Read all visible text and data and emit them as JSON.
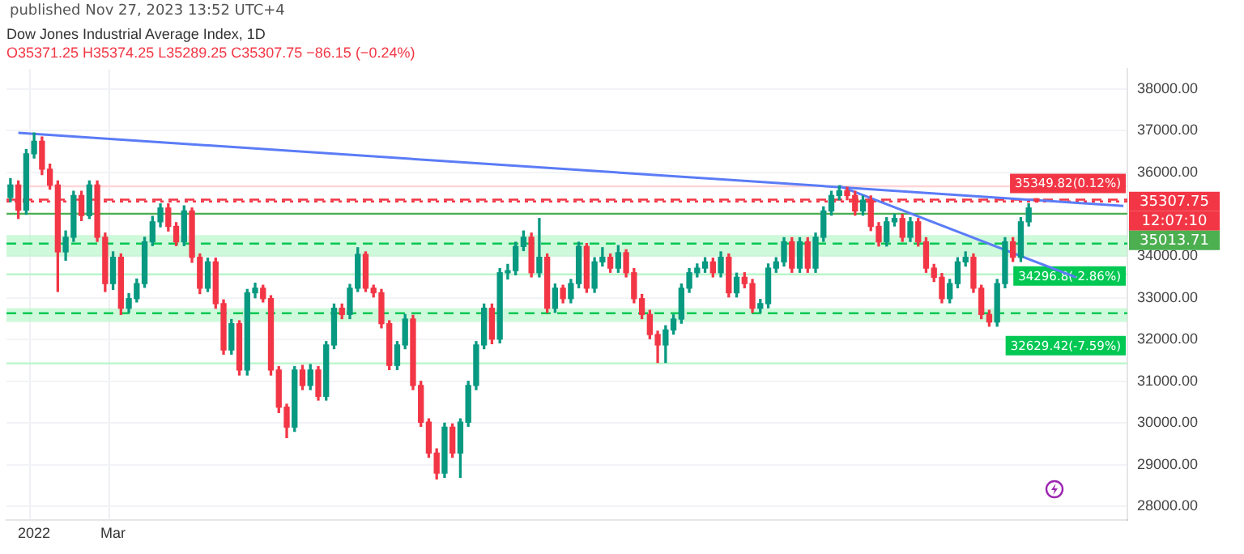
{
  "chart_data": {
    "type": "candlestick",
    "title": "Dow Jones Industrial Average Index, 1D",
    "subtitle": "O35371.25 H35374.25 L35289.25 C35307.75 −86.15 (−0.24%)",
    "categories": [
      null,
      null,
      null,
      "2022",
      null,
      null,
      null,
      null,
      null,
      null,
      null,
      null,
      null,
      "Mar",
      null,
      null,
      null,
      null,
      null,
      null,
      null,
      null,
      null,
      null,
      null,
      null,
      null,
      null,
      null,
      null,
      null,
      null,
      null,
      null,
      null,
      null,
      null,
      null,
      null,
      null,
      null,
      null,
      null,
      null,
      null,
      null,
      null,
      null,
      null,
      null,
      null,
      null,
      null,
      null,
      null,
      null,
      null,
      null,
      null,
      null,
      null,
      null,
      null,
      null,
      null,
      null,
      null,
      null,
      null,
      null,
      null,
      null,
      null,
      null,
      null,
      null,
      null,
      null,
      null,
      null,
      null,
      null,
      null,
      null,
      null,
      null,
      null,
      null,
      null,
      null,
      null,
      null,
      null,
      null,
      null,
      null,
      null,
      null,
      null,
      null,
      null,
      null,
      null,
      null,
      null,
      null,
      null,
      null,
      null,
      null,
      null,
      null,
      null,
      null,
      null,
      null,
      null,
      null,
      null,
      null,
      null,
      null,
      null,
      null,
      null,
      null,
      null,
      null,
      null,
      null,
      null,
      null,
      null,
      null,
      null,
      null,
      null,
      null,
      null,
      null,
      null,
      null
    ],
    "series": [
      {
        "ohlc": [
          [
            35400,
            35850,
            35300,
            35700
          ],
          [
            35700,
            35800,
            34900,
            35100
          ],
          [
            35100,
            36550,
            35000,
            36450
          ],
          [
            36450,
            36950,
            36350,
            36750
          ],
          [
            36750,
            36850,
            35950,
            36080
          ],
          [
            36080,
            36200,
            35600,
            35700
          ],
          [
            35700,
            35800,
            33150,
            34100
          ],
          [
            34100,
            34600,
            33900,
            34450
          ],
          [
            34450,
            35550,
            34350,
            35450
          ],
          [
            35450,
            35550,
            34850,
            34970
          ],
          [
            34970,
            35800,
            34900,
            35700
          ],
          [
            35700,
            35800,
            34350,
            34450
          ],
          [
            34450,
            34550,
            33150,
            33340
          ],
          [
            33340,
            34100,
            33200,
            33970
          ],
          [
            33970,
            34050,
            32600,
            32750
          ],
          [
            32750,
            33100,
            32650,
            32980
          ],
          [
            32980,
            33450,
            32900,
            33340
          ],
          [
            33340,
            34450,
            33250,
            34340
          ],
          [
            34340,
            34950,
            34250,
            34820
          ],
          [
            34820,
            35250,
            34700,
            35150
          ],
          [
            35150,
            35250,
            34600,
            34710
          ],
          [
            34710,
            34800,
            34250,
            34340
          ],
          [
            34340,
            35200,
            34250,
            35080
          ],
          [
            35080,
            35150,
            33850,
            33970
          ],
          [
            33970,
            34050,
            33100,
            33230
          ],
          [
            33230,
            33950,
            33150,
            33860
          ],
          [
            33860,
            33950,
            32750,
            32860
          ],
          [
            32860,
            32950,
            31650,
            31750
          ],
          [
            31750,
            32480,
            31650,
            32380
          ],
          [
            32380,
            32450,
            31150,
            31270
          ],
          [
            31270,
            33200,
            31150,
            33120
          ],
          [
            33120,
            33350,
            33000,
            33230
          ],
          [
            33230,
            33300,
            32900,
            32980
          ],
          [
            32980,
            33050,
            31150,
            31270
          ],
          [
            31270,
            31350,
            30250,
            30380
          ],
          [
            30380,
            30450,
            29650,
            29900
          ],
          [
            29900,
            31350,
            29800,
            31270
          ],
          [
            31270,
            31380,
            30800,
            30900
          ],
          [
            30900,
            31400,
            30800,
            31270
          ],
          [
            31270,
            31350,
            30550,
            30640
          ],
          [
            30640,
            31950,
            30550,
            31870
          ],
          [
            31870,
            32850,
            31780,
            32750
          ],
          [
            32750,
            32850,
            32500,
            32600
          ],
          [
            32600,
            33320,
            32500,
            33230
          ],
          [
            33230,
            34200,
            33150,
            34040
          ],
          [
            34040,
            34100,
            33150,
            33230
          ],
          [
            33230,
            33300,
            33020,
            33120
          ],
          [
            33120,
            33200,
            32280,
            32380
          ],
          [
            32380,
            32450,
            31280,
            31380
          ],
          [
            31380,
            31950,
            31280,
            31870
          ],
          [
            31870,
            32600,
            31780,
            32490
          ],
          [
            32490,
            32580,
            30800,
            30900
          ],
          [
            30900,
            31000,
            29920,
            30020
          ],
          [
            30020,
            30100,
            29180,
            29280
          ],
          [
            29280,
            29380,
            28660,
            28800
          ],
          [
            28800,
            30000,
            28700,
            29900
          ],
          [
            29900,
            29980,
            29180,
            29280
          ],
          [
            29280,
            30100,
            28700,
            30020
          ],
          [
            30020,
            31000,
            29920,
            30900
          ],
          [
            30900,
            31950,
            30800,
            31870
          ],
          [
            31870,
            32850,
            31780,
            32750
          ],
          [
            32750,
            32850,
            31900,
            32010
          ],
          [
            32010,
            33700,
            31920,
            33600
          ],
          [
            33600,
            33800,
            33450,
            33650
          ],
          [
            33650,
            34330,
            33550,
            34230
          ],
          [
            34230,
            34600,
            34130,
            34450
          ],
          [
            34450,
            34550,
            33500,
            33600
          ],
          [
            33600,
            34900,
            33500,
            33970
          ],
          [
            33970,
            34050,
            32650,
            32750
          ],
          [
            32750,
            33330,
            32650,
            33230
          ],
          [
            33230,
            33300,
            32880,
            32980
          ],
          [
            32980,
            33440,
            32880,
            33340
          ],
          [
            33340,
            34330,
            33240,
            34230
          ],
          [
            34230,
            34300,
            33130,
            33230
          ],
          [
            33230,
            33960,
            33130,
            33860
          ],
          [
            33860,
            34200,
            33760,
            33970
          ],
          [
            33970,
            34050,
            33610,
            33710
          ],
          [
            33710,
            34250,
            33610,
            34080
          ],
          [
            34080,
            34150,
            33500,
            33600
          ],
          [
            33600,
            33700,
            32880,
            32980
          ],
          [
            32980,
            33080,
            32500,
            32600
          ],
          [
            32600,
            32700,
            32020,
            32120
          ],
          [
            32120,
            32200,
            31450,
            31870
          ],
          [
            31870,
            32330,
            31450,
            32230
          ],
          [
            32230,
            32590,
            32130,
            32490
          ],
          [
            32490,
            33330,
            32390,
            33230
          ],
          [
            33230,
            33700,
            33130,
            33600
          ],
          [
            33600,
            33810,
            33500,
            33710
          ],
          [
            33710,
            33960,
            33610,
            33860
          ],
          [
            33860,
            33950,
            33500,
            33600
          ],
          [
            33600,
            34100,
            33500,
            33970
          ],
          [
            33970,
            34050,
            33020,
            33120
          ],
          [
            33120,
            33590,
            33020,
            33490
          ],
          [
            33490,
            33600,
            33240,
            33340
          ],
          [
            33340,
            33440,
            32650,
            32750
          ],
          [
            32750,
            32960,
            32650,
            32860
          ],
          [
            32860,
            33810,
            32760,
            33710
          ],
          [
            33710,
            33960,
            33610,
            33860
          ],
          [
            33860,
            34440,
            33760,
            34340
          ],
          [
            34340,
            34440,
            33610,
            33710
          ],
          [
            33710,
            34440,
            33610,
            34340
          ],
          [
            34340,
            34440,
            33610,
            33710
          ],
          [
            33710,
            34550,
            33610,
            34450
          ],
          [
            34450,
            35180,
            34350,
            35080
          ],
          [
            35080,
            35550,
            34980,
            35450
          ],
          [
            35450,
            35680,
            35350,
            35560
          ],
          [
            35560,
            35650,
            35350,
            35450
          ],
          [
            35450,
            35550,
            34980,
            35080
          ],
          [
            35080,
            35440,
            34980,
            35340
          ],
          [
            35340,
            35440,
            34610,
            34710
          ],
          [
            34710,
            34800,
            34240,
            34340
          ],
          [
            34340,
            34920,
            34240,
            34820
          ],
          [
            34820,
            35000,
            34720,
            34900
          ],
          [
            34900,
            35000,
            34350,
            34450
          ],
          [
            34450,
            34920,
            34350,
            34820
          ],
          [
            34820,
            34900,
            34240,
            34340
          ],
          [
            34340,
            34440,
            33610,
            33710
          ],
          [
            33710,
            33800,
            33390,
            33490
          ],
          [
            33490,
            33580,
            32880,
            32980
          ],
          [
            32980,
            33440,
            32880,
            33340
          ],
          [
            33340,
            33960,
            33240,
            33860
          ],
          [
            33860,
            34100,
            33760,
            33970
          ],
          [
            33970,
            34050,
            33130,
            33230
          ],
          [
            33230,
            33300,
            32500,
            32600
          ],
          [
            32600,
            32700,
            32320,
            32420
          ],
          [
            32420,
            33440,
            32320,
            33340
          ],
          [
            33340,
            34440,
            33240,
            34340
          ],
          [
            34340,
            34440,
            33870,
            33970
          ],
          [
            33970,
            34920,
            33870,
            34820
          ],
          [
            34820,
            35250,
            34720,
            35150
          ],
          [
            35371.25,
            35374.25,
            35289.25,
            35307.75
          ],
          null,
          null,
          null,
          null,
          null,
          null,
          null,
          null,
          null,
          null,
          null
        ],
        "colors": [
          "#089981",
          "#f23645",
          "#089981",
          "#089981",
          "#f23645",
          "#f23645",
          "#f23645",
          "#089981",
          "#089981",
          "#f23645",
          "#089981",
          "#f23645",
          "#f23645",
          "#089981",
          "#f23645",
          "#089981",
          "#089981",
          "#089981",
          "#089981",
          "#089981",
          "#f23645",
          "#f23645",
          "#089981",
          "#f23645",
          "#f23645",
          "#089981",
          "#f23645",
          "#f23645",
          "#089981",
          "#f23645",
          "#089981",
          "#089981",
          "#f23645",
          "#f23645",
          "#f23645",
          "#f23645",
          "#089981",
          "#f23645",
          "#089981",
          "#f23645",
          "#089981",
          "#089981",
          "#f23645",
          "#089981",
          "#089981",
          "#f23645",
          "#f23645",
          "#f23645",
          "#f23645",
          "#089981",
          "#089981",
          "#f23645",
          "#f23645",
          "#f23645",
          "#f23645",
          "#089981",
          "#f23645",
          "#089981",
          "#089981",
          "#089981",
          "#089981",
          "#f23645",
          "#089981",
          "#089981",
          "#089981",
          "#089981",
          "#f23645",
          "#089981",
          "#f23645",
          "#089981",
          "#f23645",
          "#089981",
          "#089981",
          "#f23645",
          "#089981",
          "#089981",
          "#f23645",
          "#089981",
          "#f23645",
          "#f23645",
          "#f23645",
          "#f23645",
          "#f23645",
          "#089981",
          "#089981",
          "#089981",
          "#089981",
          "#089981",
          "#089981",
          "#f23645",
          "#089981",
          "#f23645",
          "#089981",
          "#f23645",
          "#f23645",
          "#089981",
          "#089981",
          "#089981",
          "#089981",
          "#f23645",
          "#089981",
          "#f23645",
          "#089981",
          "#089981",
          "#089981",
          "#089981",
          "#f23645",
          "#f23645",
          "#089981",
          "#f23645",
          "#f23645",
          "#089981",
          "#089981",
          "#f23645",
          "#089981",
          "#f23645",
          "#f23645",
          "#f23645",
          "#f23645",
          "#089981",
          "#089981",
          "#089981",
          "#f23645",
          "#f23645",
          "#f23645",
          "#089981",
          "#089981",
          "#f23645",
          "#089981",
          "#089981",
          "#f23645",
          null,
          null,
          null,
          null,
          null,
          null,
          null,
          null,
          null,
          null,
          null
        ]
      },
      {
        "type": "line",
        "color": "#5b7cf7",
        "values": [
          null,
          36950,
          null,
          null,
          null,
          null,
          null,
          null,
          null,
          null,
          null,
          null,
          null,
          null,
          null,
          null,
          null,
          null,
          null,
          null,
          null,
          null,
          null,
          null,
          null,
          null,
          null,
          null,
          null,
          null,
          null,
          null,
          null,
          null,
          null,
          null,
          null,
          null,
          null,
          null,
          null,
          null,
          null,
          null,
          null,
          null,
          null,
          null,
          null,
          null,
          null,
          null,
          null,
          null,
          null,
          null,
          null,
          null,
          null,
          null,
          null,
          null,
          null,
          null,
          null,
          null,
          null,
          null,
          null,
          null,
          null,
          null,
          null,
          null,
          null,
          null,
          null,
          null,
          null,
          null,
          null,
          null,
          null,
          null,
          null,
          null,
          null,
          null,
          null,
          null,
          null,
          null,
          null,
          null,
          null,
          null,
          null,
          null,
          null,
          null,
          null,
          null,
          null,
          null,
          null,
          null,
          null,
          null,
          null,
          null,
          null,
          null,
          null,
          null,
          null,
          null,
          null,
          null,
          null,
          null,
          null,
          null,
          null,
          null,
          null,
          null,
          null,
          null,
          null,
          null,
          null,
          null,
          null,
          null,
          null,
          null,
          null,
          null,
          null,
          null,
          null,
          35200
        ]
      },
      {
        "type": "line",
        "color": "#5b7cf7",
        "values": [
          null,
          null,
          null,
          null,
          null,
          null,
          null,
          null,
          null,
          null,
          null,
          null,
          null,
          null,
          null,
          null,
          null,
          null,
          null,
          null,
          null,
          null,
          null,
          null,
          null,
          null,
          null,
          null,
          null,
          null,
          null,
          null,
          null,
          null,
          null,
          null,
          null,
          null,
          null,
          null,
          null,
          null,
          null,
          null,
          null,
          null,
          null,
          null,
          null,
          null,
          null,
          null,
          null,
          null,
          null,
          null,
          null,
          null,
          null,
          null,
          null,
          null,
          null,
          null,
          null,
          null,
          null,
          null,
          null,
          null,
          null,
          null,
          null,
          null,
          null,
          null,
          null,
          null,
          null,
          null,
          null,
          null,
          null,
          null,
          null,
          null,
          null,
          null,
          null,
          null,
          null,
          null,
          null,
          null,
          null,
          null,
          null,
          null,
          null,
          null,
          null,
          null,
          null,
          null,
          null,
          35680,
          null,
          null,
          null,
          null,
          null,
          null,
          null,
          null,
          null,
          null,
          null,
          null,
          null,
          null,
          null,
          null,
          null,
          null,
          null,
          null,
          null,
          null,
          null,
          null,
          null,
          null,
          null,
          null,
          null,
          33490,
          null,
          null,
          null,
          null,
          null,
          null
        ]
      }
    ],
    "ylim": [
      27670,
      38480
    ],
    "yticks": [
      {
        "value": 28000,
        "label": "28000.00"
      },
      {
        "value": 29000,
        "label": "29000.00"
      },
      {
        "value": 30000,
        "label": "30000.00"
      },
      {
        "value": 31000,
        "label": "31000.00"
      },
      {
        "value": 32000,
        "label": "32000.00"
      },
      {
        "value": 33000,
        "label": "33000.00"
      },
      {
        "value": 34000,
        "label": "34000.00"
      },
      {
        "value": 35000,
        "label": null
      },
      {
        "value": 36000,
        "label": "36000.00"
      },
      {
        "value": 37000,
        "label": "37000.00"
      },
      {
        "value": 38000,
        "label": "38000.00"
      }
    ],
    "bands": [
      {
        "axis": "y",
        "from": 33990,
        "to": 34500,
        "color": "#b9f6ca"
      },
      {
        "axis": "y",
        "from": 32420,
        "to": 32750,
        "color": "#b9f6ca"
      }
    ],
    "ref_lines": [
      {
        "axis": "y",
        "value": 35670,
        "color": "#ffd6d9",
        "line_style": "solid"
      },
      {
        "axis": "y",
        "value": 35349.82,
        "label": "35349.82(0.12%)",
        "color": "#f23645",
        "line_style": "dashed"
      },
      {
        "axis": "y",
        "value": 35307.75,
        "label": "35307.75",
        "color": "#f23645",
        "line_style": "dotted"
      },
      {
        "axis": "y",
        "value": 35013.71,
        "label": "35013.71",
        "color": "#4caf50",
        "line_style": "solid"
      },
      {
        "axis": "y",
        "value": 34296.8,
        "label": "34296.8(-2.86%)",
        "color": "#00c853",
        "line_style": "dashed"
      },
      {
        "axis": "y",
        "value": 33560,
        "color": "#b9f6ca",
        "line_style": "solid"
      },
      {
        "axis": "y",
        "value": 32629.42,
        "label": "32629.42(-7.59%)",
        "color": "#00c853",
        "line_style": "dashed"
      },
      {
        "axis": "y",
        "value": 31430,
        "color": "#b9f6ca",
        "line_style": "solid"
      }
    ],
    "annotations": [
      "published Nov 27, 2023 13:52 UTC+4",
      "12:07:10"
    ],
    "grid": true,
    "legend": false
  }
}
